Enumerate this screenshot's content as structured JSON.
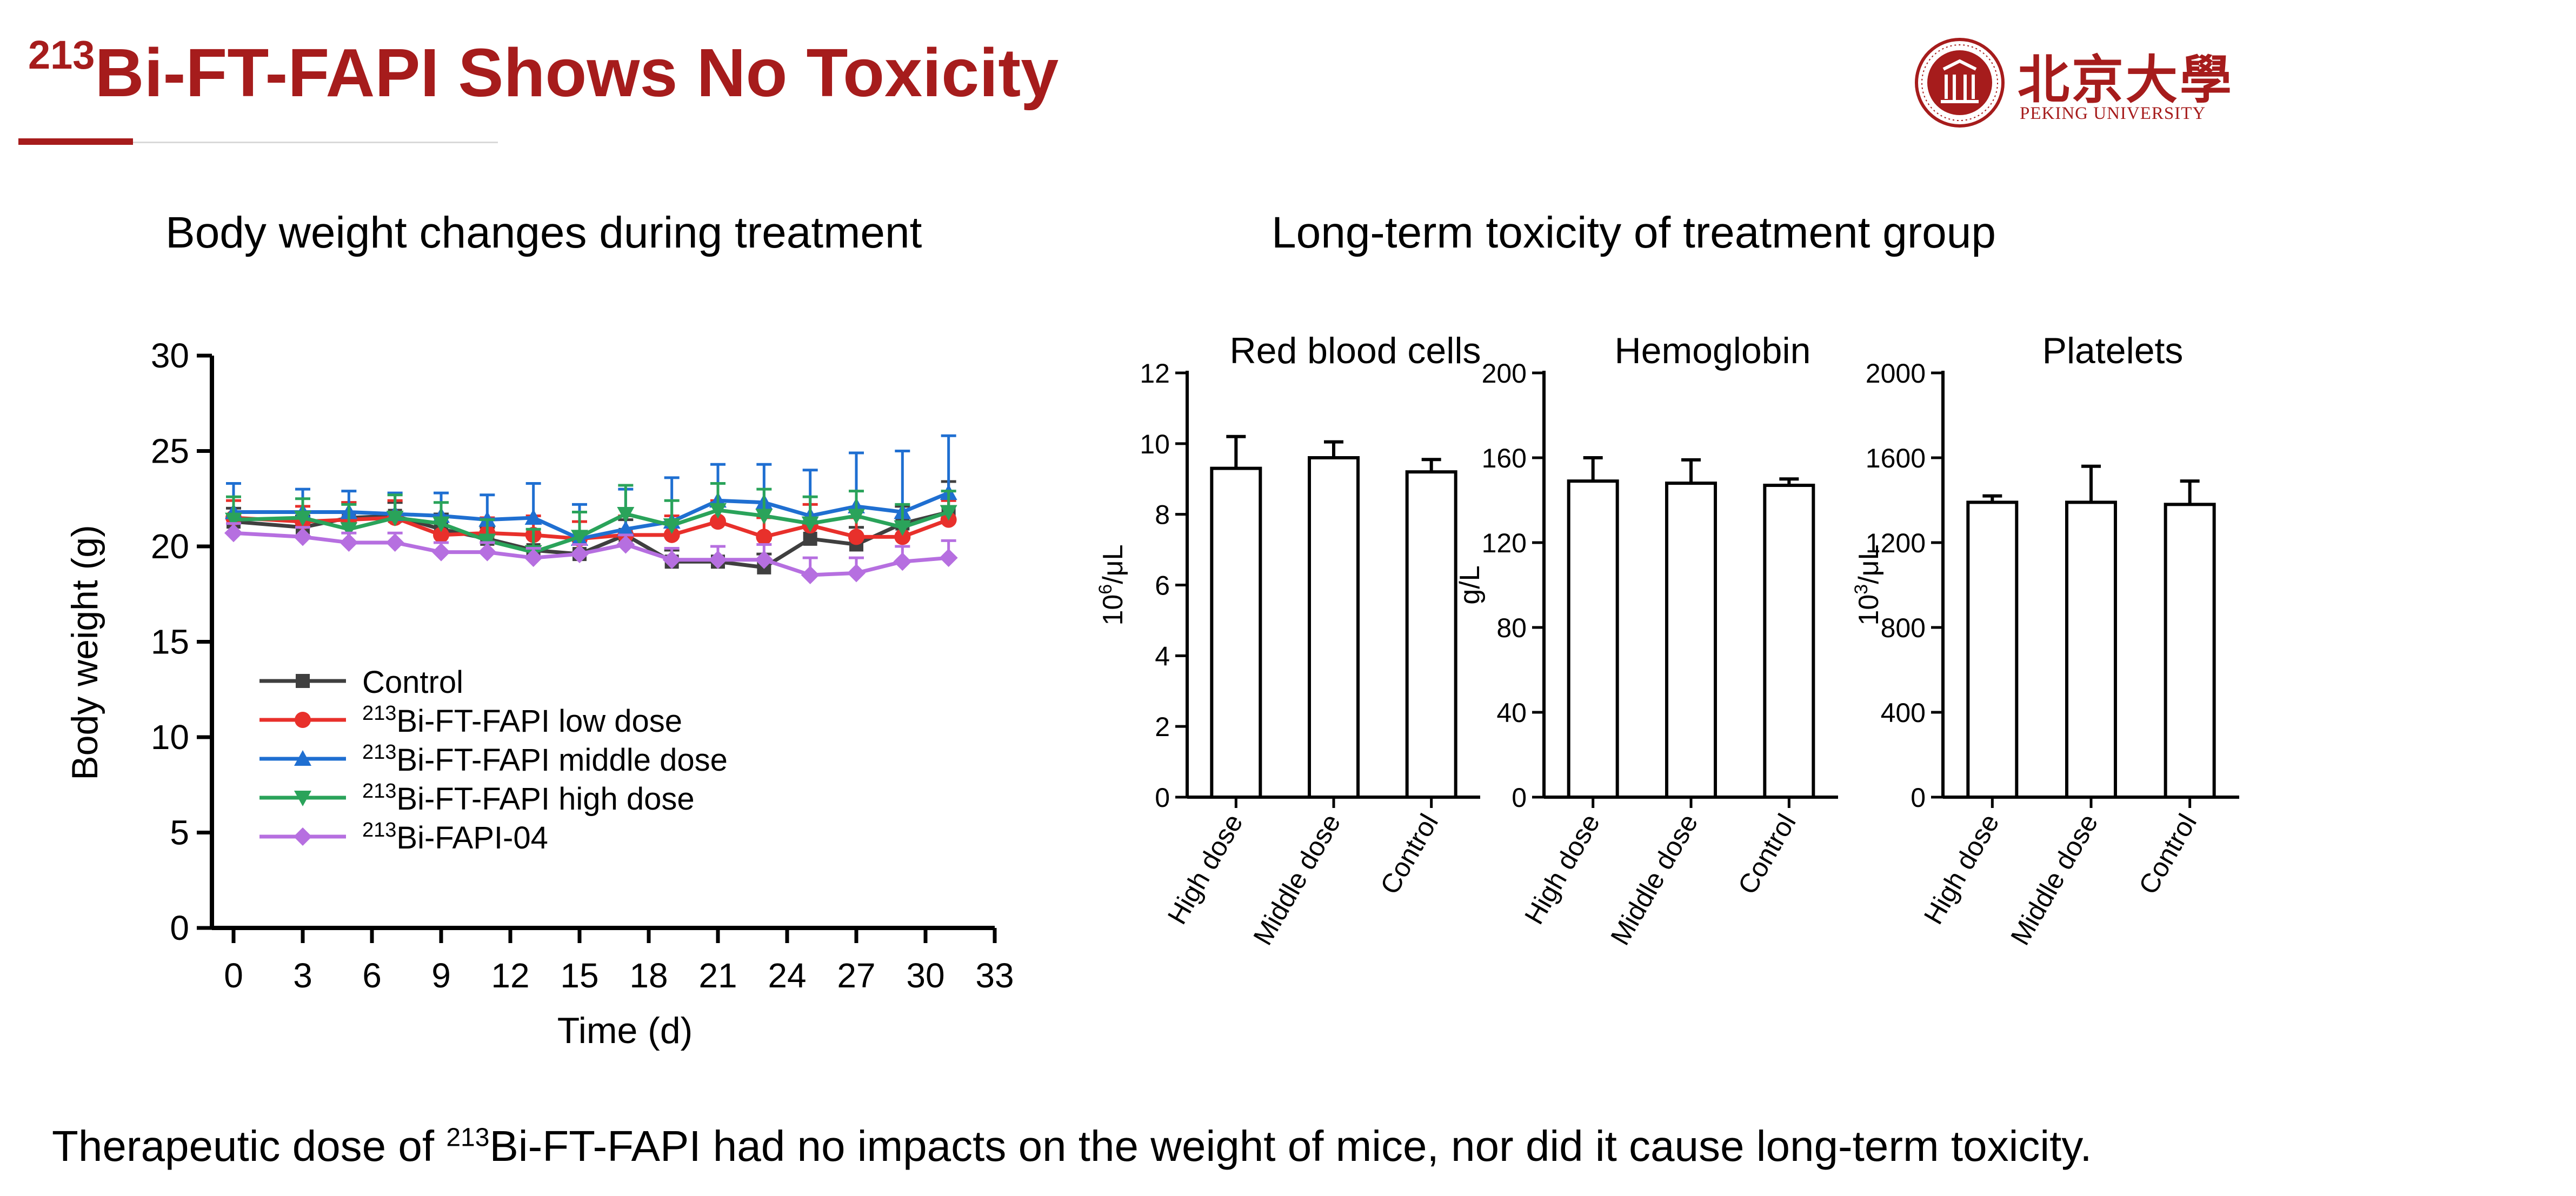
{
  "slide": {
    "title_sup": "213",
    "title_main": "Bi-FT-FAPI Shows No Toxicity",
    "logo_cn": "北京大學",
    "logo_en": "PEKING UNIVERSITY",
    "left_heading": "Body weight changes during treatment",
    "right_heading": "Long-term toxicity of treatment group",
    "footer_pre": "Therapeutic dose of ",
    "footer_sup": "213",
    "footer_post": "Bi-FT-FAPI had no impacts on the weight of mice, nor did it cause long-term toxicity."
  },
  "colors": {
    "accent": "#a61c1c",
    "control": "#3f3f3f",
    "low": "#e8302b",
    "middle": "#1f6fd1",
    "high": "#2aa35a",
    "fapi04": "#b66fe0"
  },
  "chart_data": [
    {
      "type": "line",
      "xlabel": "Time (d)",
      "ylabel": "Body weight (g)",
      "xlim": [
        0,
        33
      ],
      "ylim": [
        0,
        30
      ],
      "xticks": [
        0,
        3,
        6,
        9,
        12,
        15,
        18,
        21,
        24,
        27,
        30,
        33
      ],
      "yticks": [
        0,
        5,
        10,
        15,
        20,
        25,
        30
      ],
      "legend": "lower-left",
      "series": [
        {
          "name": "Control",
          "label_sup": "",
          "label_text": "Control",
          "marker": "square",
          "color_key": "control",
          "x": [
            0,
            3,
            5,
            7,
            9,
            11,
            13,
            15,
            17,
            19,
            21,
            23,
            25,
            27,
            29,
            31
          ],
          "y": [
            21.3,
            21.0,
            21.5,
            21.6,
            20.9,
            20.4,
            19.8,
            19.6,
            20.6,
            19.2,
            19.2,
            18.9,
            20.4,
            20.1,
            21.2,
            21.8
          ],
          "err": [
            0.7,
            0.6,
            0.8,
            0.7,
            0.8,
            0.6,
            0.9,
            0.7,
            0.8,
            0.6,
            0.8,
            0.7,
            0.9,
            0.9,
            0.9,
            1.6
          ]
        },
        {
          "name": "213Bi-FT-FAPI low dose",
          "label_sup": "213",
          "label_text": "Bi-FT-FAPI  low dose",
          "marker": "circle",
          "color_key": "low",
          "x": [
            0,
            3,
            5,
            7,
            9,
            11,
            13,
            15,
            17,
            19,
            21,
            23,
            25,
            27,
            29,
            31
          ],
          "y": [
            21.5,
            21.3,
            21.4,
            21.5,
            20.6,
            20.7,
            20.6,
            20.4,
            20.6,
            20.6,
            21.3,
            20.5,
            21.1,
            20.5,
            20.5,
            21.4
          ],
          "err": [
            0.9,
            0.8,
            0.9,
            0.9,
            0.9,
            0.8,
            1.0,
            0.9,
            1.0,
            1.0,
            1.1,
            1.0,
            1.1,
            1.0,
            1.0,
            1.0
          ]
        },
        {
          "name": "213Bi-FT-FAPI middle dose",
          "label_sup": "213",
          "label_text": "Bi-FT-FAPI  middle dose",
          "marker": "triangle-up",
          "color_key": "middle",
          "x": [
            0,
            3,
            5,
            7,
            9,
            11,
            13,
            15,
            17,
            19,
            21,
            23,
            25,
            27,
            29,
            31
          ],
          "y": [
            21.8,
            21.8,
            21.8,
            21.7,
            21.6,
            21.4,
            21.5,
            20.4,
            20.9,
            21.3,
            22.4,
            22.3,
            21.6,
            22.1,
            21.8,
            22.8
          ],
          "err": [
            1.5,
            1.2,
            1.1,
            1.1,
            1.2,
            1.3,
            1.8,
            1.8,
            2.1,
            2.3,
            1.9,
            2.0,
            2.4,
            2.8,
            3.2,
            3.0
          ]
        },
        {
          "name": "213Bi-FT-FAPI high dose",
          "label_sup": "213",
          "label_text": "Bi-FT-FAPI  high dose",
          "marker": "triangle-down",
          "color_key": "high",
          "x": [
            0,
            3,
            5,
            7,
            9,
            11,
            13,
            15,
            17,
            19,
            21,
            23,
            25,
            27,
            29,
            31
          ],
          "y": [
            21.4,
            21.5,
            20.9,
            21.5,
            21.2,
            20.3,
            19.7,
            20.5,
            21.7,
            21.1,
            21.9,
            21.6,
            21.2,
            21.6,
            21.0,
            21.8
          ],
          "err": [
            1.2,
            1.0,
            1.3,
            1.2,
            1.1,
            1.1,
            1.2,
            1.3,
            1.5,
            1.3,
            1.4,
            1.4,
            1.4,
            1.3,
            1.2,
            1.1
          ]
        },
        {
          "name": "213Bi-FAPI-04",
          "label_sup": "213",
          "label_text": "Bi-FAPI-04",
          "marker": "diamond",
          "color_key": "fapi04",
          "x": [
            0,
            3,
            5,
            7,
            9,
            11,
            13,
            15,
            17,
            19,
            21,
            23,
            25,
            27,
            29,
            31
          ],
          "y": [
            20.7,
            20.5,
            20.2,
            20.2,
            19.7,
            19.7,
            19.4,
            19.6,
            20.1,
            19.3,
            19.3,
            19.3,
            18.5,
            18.6,
            19.2,
            19.4
          ],
          "err": [
            0.5,
            0.5,
            0.5,
            0.5,
            0.5,
            0.5,
            0.5,
            0.5,
            0.5,
            0.6,
            0.7,
            0.8,
            0.9,
            0.8,
            0.8,
            0.9
          ]
        }
      ]
    },
    {
      "type": "bar",
      "title": "Red blood cells",
      "ylabel_pre": "10",
      "ylabel_sup": "6",
      "ylabel_post": "/μL",
      "ylim": [
        0,
        12
      ],
      "yticks": [
        0,
        2,
        4,
        6,
        8,
        10,
        12
      ],
      "categories": [
        "High dose",
        "Middle dose",
        "Control"
      ],
      "values": [
        9.3,
        9.6,
        9.2
      ],
      "err": [
        0.9,
        0.45,
        0.35
      ]
    },
    {
      "type": "bar",
      "title": "Hemoglobin",
      "ylabel_pre": "g/L",
      "ylabel_sup": "",
      "ylabel_post": "",
      "ylim": [
        0,
        200
      ],
      "yticks": [
        0,
        40,
        80,
        120,
        160,
        200
      ],
      "categories": [
        "High dose",
        "Middle dose",
        "Control"
      ],
      "values": [
        149,
        148,
        147
      ],
      "err": [
        11,
        11,
        3
      ]
    },
    {
      "type": "bar",
      "title": "Platelets",
      "ylabel_pre": "10",
      "ylabel_sup": "3",
      "ylabel_post": "/μL",
      "ylim": [
        0,
        2000
      ],
      "yticks": [
        0,
        400,
        800,
        1200,
        1600,
        2000
      ],
      "categories": [
        "High dose",
        "Middle dose",
        "Control"
      ],
      "values": [
        1390,
        1390,
        1380
      ],
      "err": [
        30,
        170,
        110
      ]
    }
  ]
}
